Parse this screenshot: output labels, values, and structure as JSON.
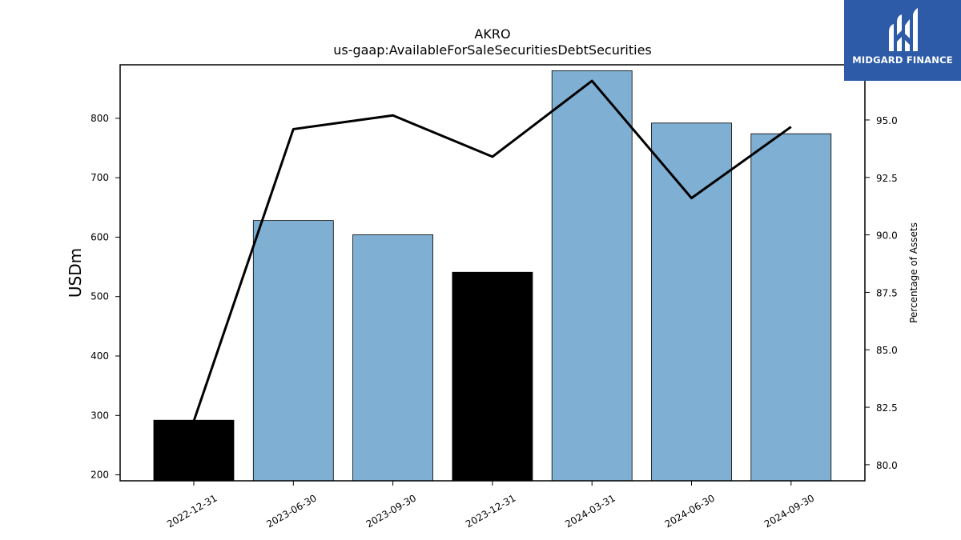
{
  "chart_data": {
    "type": "bar",
    "title": "AKRO",
    "subtitle": "us-gaap:AvailableForSaleSecuritiesDebtSecurities",
    "ylabel": "USDm",
    "ylabel_right": "Percentage of Assets",
    "categories": [
      "2022-12-31",
      "2023-06-30",
      "2023-09-30",
      "2023-12-31",
      "2024-03-31",
      "2024-06-30",
      "2024-09-30"
    ],
    "series": [
      {
        "values": [
          292,
          628,
          604,
          541,
          880,
          792,
          774
        ],
        "axis": "left",
        "colors": [
          "#000000",
          "#7fb0d3",
          "#7fb0d3",
          "#000000",
          "#7fb0d3",
          "#7fb0d3",
          "#7fb0d3"
        ]
      },
      {
        "values": [
          81.9,
          94.6,
          95.2,
          93.4,
          96.7,
          91.6,
          94.7
        ],
        "axis": "right",
        "type": "line",
        "color": "#000000"
      }
    ],
    "ylim": [
      190,
      890
    ],
    "yticks": [
      200,
      300,
      400,
      500,
      600,
      700,
      800
    ],
    "ylim_right": [
      79.3,
      97.4
    ],
    "yticks_right": [
      "80.0",
      "82.5",
      "85.0",
      "87.5",
      "90.0",
      "92.5",
      "95.0"
    ],
    "grid": false
  },
  "logo": {
    "text": "MIDGARD FINANCE",
    "background": "#2d5ba8"
  }
}
